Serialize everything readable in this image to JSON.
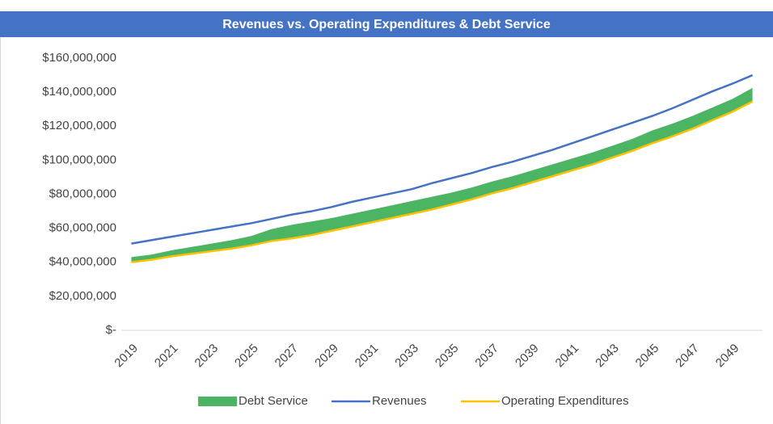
{
  "chart_data": {
    "type": "line",
    "title": "Revenues vs. Operating Expenditures & Debt Service",
    "categories": [
      "2019",
      null,
      "2021",
      null,
      "2023",
      null,
      "2025",
      null,
      "2027",
      null,
      "2029",
      null,
      "2031",
      null,
      "2033",
      null,
      "2035",
      null,
      "2037",
      null,
      "2039",
      null,
      "2041",
      null,
      "2043",
      null,
      "2045",
      null,
      "2047",
      null,
      "2049",
      null
    ],
    "series": [
      {
        "name": "Debt Service",
        "type": "area",
        "stacked_on": 2,
        "color": "#4cb563",
        "values": [
          3,
          3,
          3.5,
          4,
          4.5,
          5,
          5.5,
          7,
          8,
          8,
          7.5,
          7.5,
          7.5,
          7.5,
          7.5,
          7.5,
          7,
          7,
          7,
          7,
          7,
          7,
          7,
          7,
          7,
          7,
          7.5,
          7.5,
          7.5,
          7.5,
          7.5,
          8
        ]
      },
      {
        "name": "Revenues",
        "type": "line",
        "color": "#4472c4",
        "values": [
          51,
          53,
          55,
          57,
          59,
          61,
          63,
          65.5,
          68,
          70,
          72.5,
          75.5,
          78,
          80.5,
          83,
          86.5,
          89.5,
          92.5,
          96,
          99,
          102.5,
          106,
          110,
          114,
          118,
          122,
          126,
          130.5,
          135.5,
          140.5,
          145,
          150
        ]
      },
      {
        "name": "Operating Expenditures",
        "type": "line",
        "color": "#ffc000",
        "values": [
          40,
          41.5,
          43.5,
          45,
          46.5,
          48,
          50,
          52.5,
          54,
          56,
          58.5,
          61,
          63.5,
          66,
          68.5,
          71,
          74,
          77,
          80.5,
          83.5,
          87,
          90.5,
          94,
          97.5,
          101.5,
          105.5,
          110,
          114,
          118.5,
          123.5,
          128.5,
          134.5
        ]
      }
    ],
    "ylim": [
      0,
      160
    ],
    "yticks": [
      {
        "value": 0,
        "label": "$-"
      },
      {
        "value": 20,
        "label": "$20,000,000"
      },
      {
        "value": 40,
        "label": "$40,000,000"
      },
      {
        "value": 60,
        "label": "$60,000,000"
      },
      {
        "value": 80,
        "label": "$80,000,000"
      },
      {
        "value": 100,
        "label": "$100,000,000"
      },
      {
        "value": 120,
        "label": "$120,000,000"
      },
      {
        "value": 140,
        "label": "$140,000,000"
      },
      {
        "value": 160,
        "label": "$160,000,000"
      }
    ],
    "legend": "bottom"
  }
}
